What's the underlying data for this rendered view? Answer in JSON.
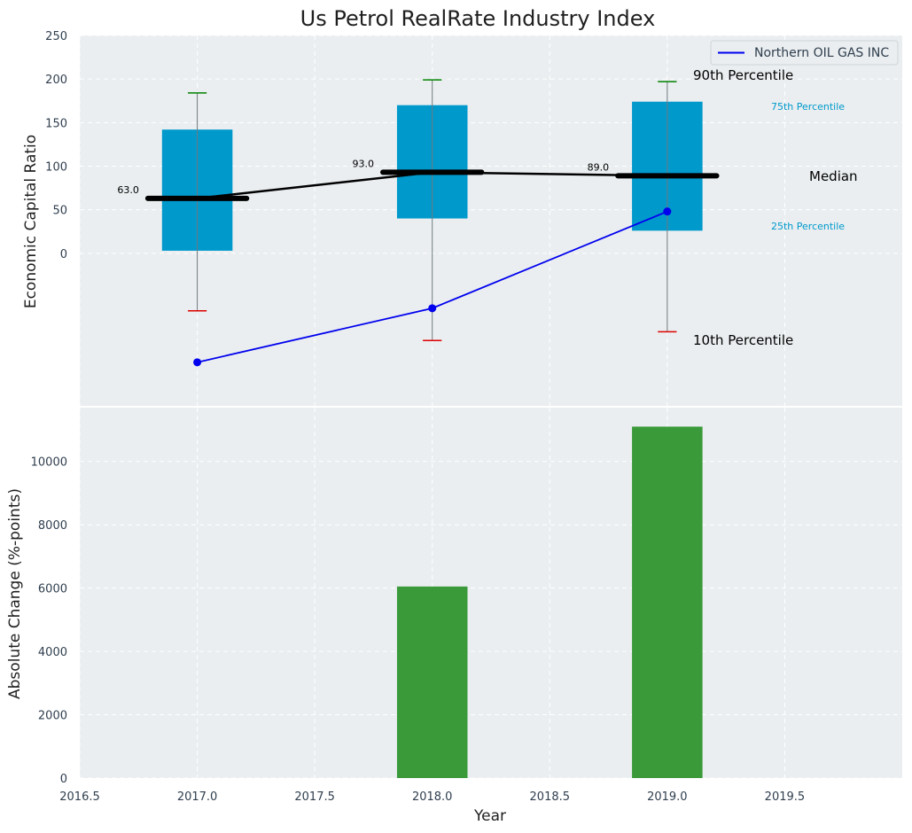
{
  "chart_data": [
    {
      "type": "boxplot",
      "title": "Us Petrol RealRate Industry Index",
      "xlabel": "",
      "ylabel": "Economic Capital Ratio",
      "ylim": [
        -175,
        250
      ],
      "yticks": [
        0,
        50,
        100,
        150,
        200,
        250
      ],
      "xlim": [
        2016.5,
        2020.0
      ],
      "boxes": [
        {
          "x": 2017,
          "p10": -66,
          "p25": 3,
          "median": 63,
          "p75": 142,
          "p90": 184,
          "median_label": "63.0"
        },
        {
          "x": 2018,
          "p10": -100,
          "p25": 40,
          "median": 93,
          "p75": 170,
          "p90": 199,
          "median_label": "93.0"
        },
        {
          "x": 2019,
          "p10": -90,
          "p25": 26,
          "median": 89,
          "p75": 174,
          "p90": 197,
          "median_label": "89.0"
        }
      ],
      "company_series": {
        "name": "Northern OIL GAS INC",
        "x": [
          2017,
          2018,
          2019
        ],
        "values": [
          -125,
          -63,
          48
        ]
      },
      "legend": {
        "entries": [
          "Northern OIL GAS INC"
        ],
        "position": "top-right"
      },
      "annotations": {
        "p90": "90th Percentile",
        "p75": "75th Percentile",
        "median": "Median",
        "p25": "25th Percentile",
        "p10": "10th Percentile"
      },
      "colors": {
        "box": "#0099cc",
        "median": "#000000",
        "company": "#0000ee",
        "whisker_top": "#008000",
        "whisker_bottom": "#dd0000",
        "p75_label": "#0099cc",
        "p25_label": "#0099cc"
      }
    },
    {
      "type": "bar",
      "xlabel": "Year",
      "ylabel": "Absolute Change (%-points)",
      "ylim": [
        0,
        11700
      ],
      "yticks": [
        0,
        2000,
        4000,
        6000,
        8000,
        10000
      ],
      "xlim": [
        2016.5,
        2020.0
      ],
      "xticks": [
        "2016.5",
        "2017.0",
        "2017.5",
        "2018.0",
        "2018.5",
        "2019.0",
        "2019.5"
      ],
      "x": [
        2018,
        2019
      ],
      "values": [
        6050,
        11100
      ],
      "colors": {
        "bar": "#3a9a3a"
      }
    }
  ]
}
